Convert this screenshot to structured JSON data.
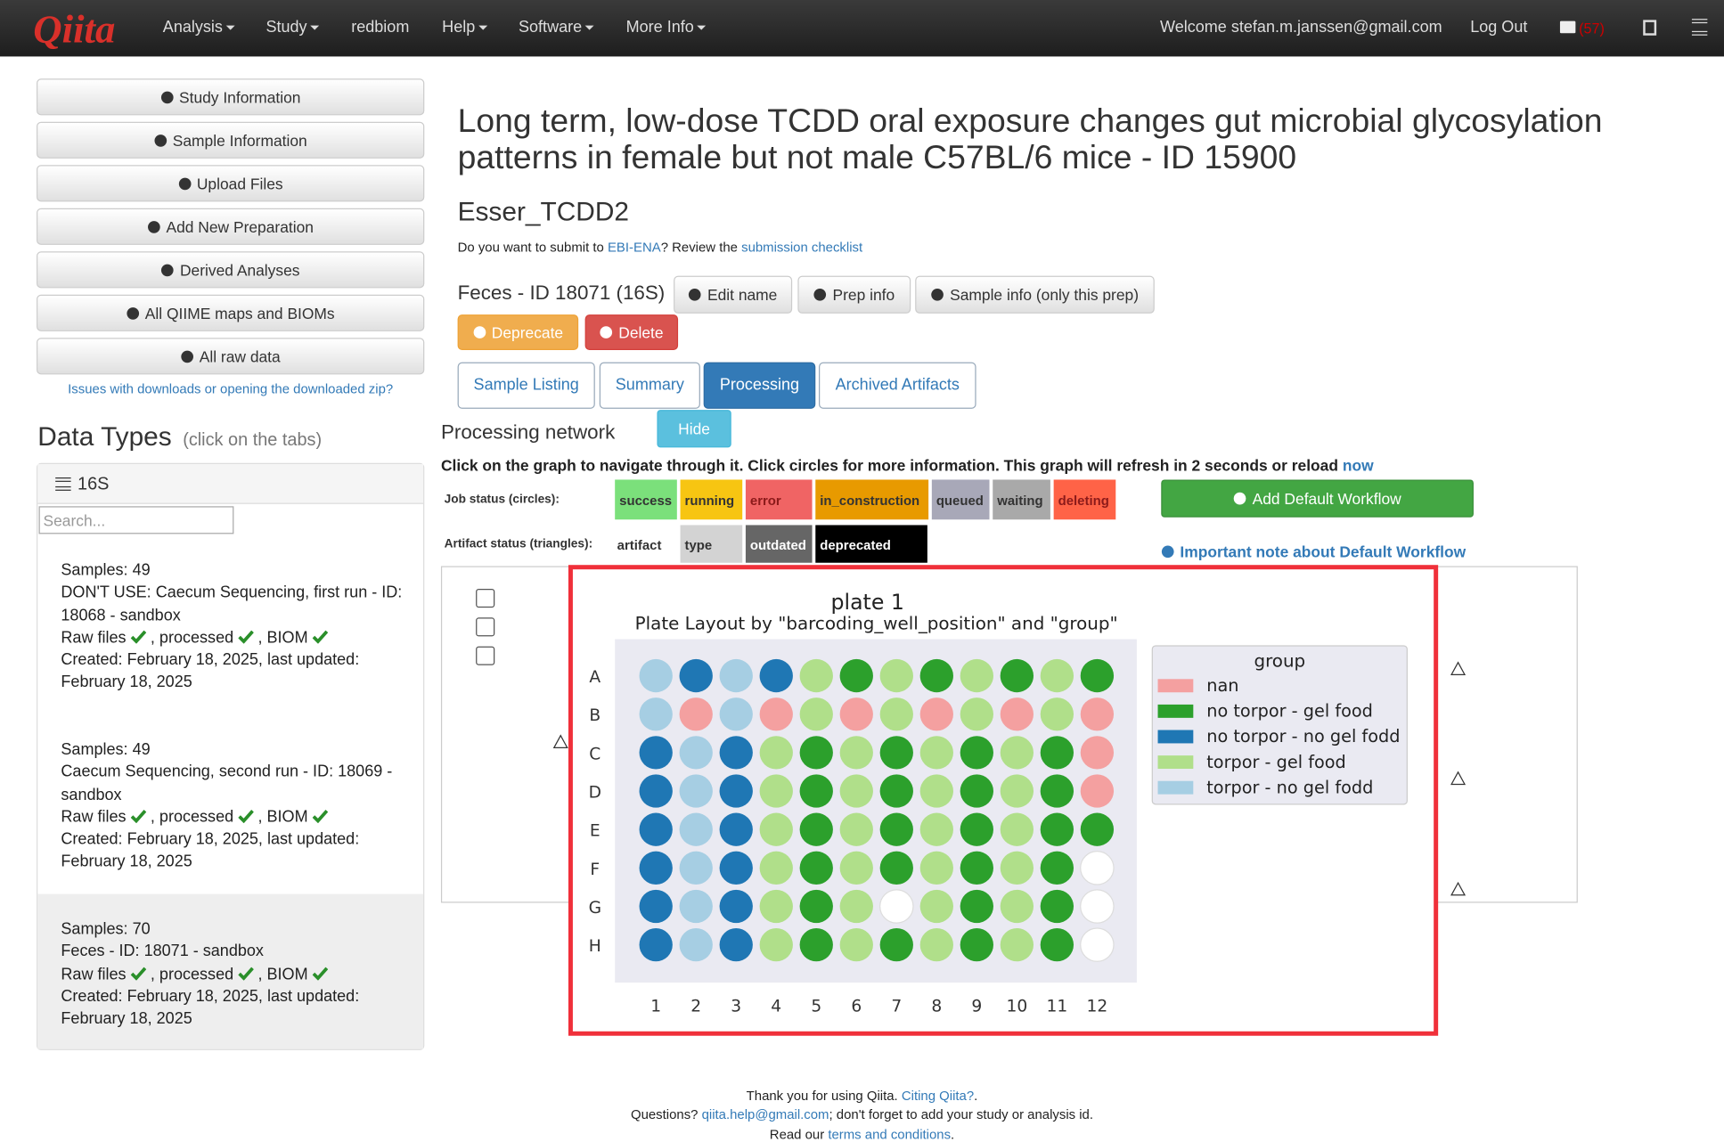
{
  "navbar": {
    "brand": "Qiita",
    "menu": [
      "Analysis",
      "Study",
      "redbiom",
      "Help",
      "Software",
      "More Info"
    ],
    "welcome": "Welcome stefan.m.janssen@gmail.com",
    "logout": "Log Out",
    "message_count": "(57)"
  },
  "sidebar": {
    "buttons": [
      "Study Information",
      "Sample Information",
      "Upload Files",
      "Add New Preparation",
      "Derived Analyses",
      "All QIIME maps and BIOMs",
      "All raw data"
    ],
    "issues_link": "Issues with downloads or opening the downloaded zip?",
    "data_types_title": "Data Types",
    "data_types_hint": "(click on the tabs)",
    "tab": "16S",
    "search_placeholder": "Search...",
    "preps": [
      {
        "samples": "Samples: 49",
        "name": "DON'T USE: Caecum Sequencing, first run - ID: 18068 - sandbox",
        "raw": "Raw files",
        "processed": ", processed",
        "biom": ", BIOM",
        "created": "Created: February 18, 2025, last updated: February 18, 2025"
      },
      {
        "samples": "Samples: 49",
        "name": "Caecum Sequencing, second run - ID: 18069 - sandbox",
        "raw": "Raw files",
        "processed": ", processed",
        "biom": ", BIOM",
        "created": "Created: February 18, 2025, last updated: February 18, 2025"
      },
      {
        "samples": "Samples: 70",
        "name": "Feces - ID: 18071 - sandbox",
        "raw": "Raw files",
        "processed": ", processed",
        "biom": ", BIOM",
        "created": "Created: February 18, 2025, last updated: February 18, 2025"
      }
    ]
  },
  "main": {
    "title": "Long term, low-dose TCDD oral exposure changes gut microbial glycosylation patterns in female but not male C57BL/6 mice - ID 15900",
    "study_alias": "Esser_TCDD2",
    "submit": {
      "prefix": "Do you want to submit to ",
      "link": "EBI-ENA",
      "middle": "? Review the ",
      "checklist": "submission checklist"
    },
    "prep_title": "Feces - ID 18071 (16S)",
    "prep_buttons": [
      "Edit name",
      "Prep info",
      "Sample info (only this prep)"
    ],
    "deprecate": "Deprecate",
    "delete": "Delete",
    "tabs": [
      "Sample Listing",
      "Summary",
      "Processing",
      "Archived Artifacts"
    ],
    "active_tab": "Processing",
    "processing_network": "Processing network",
    "hide": "Hide",
    "instructions": "Click on the graph to navigate through it. Click circles for more information. This graph will refresh in 2 seconds or reload ",
    "now": "now",
    "job_status_label": "Job status (circles):",
    "job_statuses": [
      {
        "label": "success",
        "color": "#7be07b"
      },
      {
        "label": "running",
        "color": "#f7c512"
      },
      {
        "label": "error",
        "color": "#f06464"
      },
      {
        "label": "in_construction",
        "color": "#e89a00"
      },
      {
        "label": "queued",
        "color": "#a8a8b8"
      },
      {
        "label": "waiting",
        "color": "#a9a9a9"
      },
      {
        "label": "deleting",
        "color": "#ff6347"
      }
    ],
    "artifact_status_label": "Artifact status (triangles):",
    "artifact_statuses": [
      {
        "label": "artifact",
        "color": "#ffffff"
      },
      {
        "label": "type",
        "color": "#d3d3d3"
      },
      {
        "label": "outdated",
        "color": "#666666"
      },
      {
        "label": "deprecated",
        "color": "#000000"
      }
    ],
    "add_workflow": "Add Default Workflow",
    "important_note": "Important note about Default Workflow"
  },
  "plate": {
    "title": "plate 1",
    "subtitle": "Plate Layout by \"barcoding_well_position\" and \"group\"",
    "rows": [
      "A",
      "B",
      "C",
      "D",
      "E",
      "F",
      "G",
      "H"
    ],
    "columns": [
      "1",
      "2",
      "3",
      "4",
      "5",
      "6",
      "7",
      "8",
      "9",
      "10",
      "11",
      "12"
    ],
    "legend_title": "group",
    "groups": [
      {
        "name": "nan",
        "color": "#f4a0a0"
      },
      {
        "name": "no torpor - gel food",
        "color": "#2ca02c"
      },
      {
        "name": "no torpor - no gel fodd",
        "color": "#1f77b4"
      },
      {
        "name": "torpor - gel food",
        "color": "#b0df8a"
      },
      {
        "name": "torpor - no gel fodd",
        "color": "#a6cee3"
      }
    ],
    "wells": [
      [
        "torpor - no gel fodd",
        "no torpor - no gel fodd",
        "torpor - no gel fodd",
        "no torpor - no gel fodd",
        "torpor - gel food",
        "no torpor - gel food",
        "torpor - gel food",
        "no torpor - gel food",
        "torpor - gel food",
        "no torpor - gel food",
        "torpor - gel food",
        "no torpor - gel food"
      ],
      [
        "torpor - no gel fodd",
        "nan",
        "torpor - no gel fodd",
        "nan",
        "torpor - gel food",
        "nan",
        "torpor - gel food",
        "nan",
        "torpor - gel food",
        "nan",
        "torpor - gel food",
        "nan"
      ],
      [
        "no torpor - no gel fodd",
        "torpor - no gel fodd",
        "no torpor - no gel fodd",
        "torpor - gel food",
        "no torpor - gel food",
        "torpor - gel food",
        "no torpor - gel food",
        "torpor - gel food",
        "no torpor - gel food",
        "torpor - gel food",
        "no torpor - gel food",
        "nan"
      ],
      [
        "no torpor - no gel fodd",
        "torpor - no gel fodd",
        "no torpor - no gel fodd",
        "torpor - gel food",
        "no torpor - gel food",
        "torpor - gel food",
        "no torpor - gel food",
        "torpor - gel food",
        "no torpor - gel food",
        "torpor - gel food",
        "no torpor - gel food",
        "nan"
      ],
      [
        "no torpor - no gel fodd",
        "torpor - no gel fodd",
        "no torpor - no gel fodd",
        "torpor - gel food",
        "no torpor - gel food",
        "torpor - gel food",
        "no torpor - gel food",
        "torpor - gel food",
        "no torpor - gel food",
        "torpor - gel food",
        "no torpor - gel food",
        "no torpor - gel food"
      ],
      [
        "no torpor - no gel fodd",
        "torpor - no gel fodd",
        "no torpor - no gel fodd",
        "torpor - gel food",
        "no torpor - gel food",
        "torpor - gel food",
        "no torpor - gel food",
        "torpor - gel food",
        "no torpor - gel food",
        "torpor - gel food",
        "no torpor - gel food",
        null
      ],
      [
        "no torpor - no gel fodd",
        "torpor - no gel fodd",
        "no torpor - no gel fodd",
        "torpor - gel food",
        "no torpor - gel food",
        "torpor - gel food",
        null,
        "torpor - gel food",
        "no torpor - gel food",
        "torpor - gel food",
        "no torpor - gel food",
        null
      ],
      [
        "no torpor - no gel fodd",
        "torpor - no gel fodd",
        "no torpor - no gel fodd",
        "torpor - gel food",
        "no torpor - gel food",
        "torpor - gel food",
        "no torpor - gel food",
        "torpor - gel food",
        "no torpor - gel food",
        "torpor - gel food",
        "no torpor - gel food",
        null
      ]
    ]
  },
  "footer": {
    "thanks": "Thank you for using Qiita. ",
    "citing": "Citing Qiita?",
    "questions": "Questions? ",
    "email": "qiita.help@gmail.com",
    "reminder": "; don't forget to add your study or analysis id.",
    "read": "Read our ",
    "terms": "terms and conditions",
    "period": "."
  }
}
